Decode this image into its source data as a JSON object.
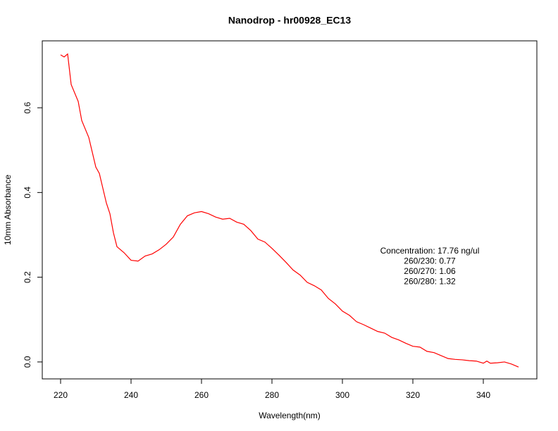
{
  "chart_data": {
    "type": "line",
    "title": "Nanodrop - hr00928_EC13",
    "x_label": "Wavelength(nm)",
    "y_label": "10mm Absorbance",
    "annotation": [
      "Concentration: 17.76 ng/ul",
      "260/230: 0.77",
      "260/270: 1.06",
      "260/280: 1.32"
    ],
    "x": [
      220,
      221,
      222,
      223,
      225,
      226,
      228,
      230,
      231,
      233,
      234,
      235,
      236,
      238,
      240,
      242,
      244,
      246,
      248,
      250,
      252,
      254,
      256,
      258,
      260,
      262,
      264,
      266,
      268,
      270,
      272,
      274,
      276,
      278,
      280,
      282,
      284,
      286,
      288,
      290,
      292,
      294,
      296,
      298,
      300,
      302,
      304,
      306,
      308,
      310,
      312,
      314,
      316,
      318,
      320,
      322,
      324,
      326,
      328,
      330,
      332,
      334,
      336,
      338,
      340,
      341,
      342,
      344,
      346,
      348,
      350
    ],
    "series": [
      {
        "name": "Absorbance",
        "color": "#ff0000",
        "values": [
          0.725,
          0.72,
          0.727,
          0.655,
          0.615,
          0.57,
          0.53,
          0.46,
          0.445,
          0.375,
          0.35,
          0.305,
          0.272,
          0.258,
          0.24,
          0.238,
          0.25,
          0.255,
          0.265,
          0.278,
          0.295,
          0.325,
          0.345,
          0.352,
          0.355,
          0.35,
          0.342,
          0.337,
          0.339,
          0.33,
          0.325,
          0.31,
          0.29,
          0.283,
          0.268,
          0.252,
          0.235,
          0.217,
          0.205,
          0.188,
          0.18,
          0.17,
          0.15,
          0.137,
          0.12,
          0.11,
          0.095,
          0.088,
          0.08,
          0.072,
          0.068,
          0.058,
          0.052,
          0.044,
          0.037,
          0.035,
          0.025,
          0.022,
          0.015,
          0.008,
          0.006,
          0.005,
          0.003,
          0.002,
          -0.003,
          0.002,
          -0.003,
          -0.002,
          0.0,
          -0.005,
          -0.012
        ]
      }
    ],
    "xlim": [
      214.8,
      355.2
    ],
    "ylim": [
      -0.04,
      0.758
    ],
    "xticks": [
      220,
      240,
      260,
      280,
      300,
      320,
      340
    ],
    "yticks": [
      {
        "value": 0,
        "label": "0.0"
      },
      0.2,
      0.4,
      0.6
    ],
    "grid": false
  }
}
